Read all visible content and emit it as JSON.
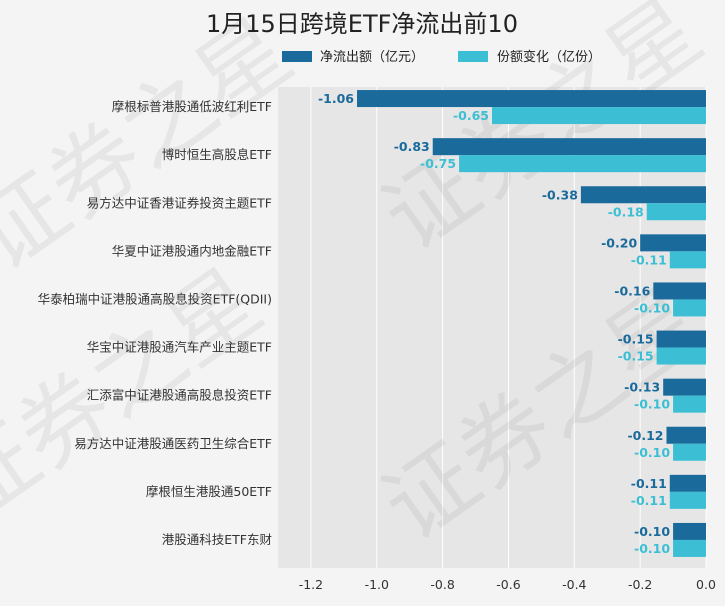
{
  "chart_data": {
    "type": "bar",
    "orientation": "horizontal",
    "title": "1月15日跨境ETF净流出前10",
    "watermark": "证券之星",
    "categories": [
      "摩根标普港股通低波红利ETF",
      "博时恒生高股息ETF",
      "易方达中证香港证券投资主题ETF",
      "华夏中证港股通内地金融ETF",
      "华泰柏瑞中证港股通高股息投资ETF(QDII)",
      "华宝中证港股通汽车产业主题ETF",
      "汇添富中证港股通高股息投资ETF",
      "易方达中证港股通医药卫生综合ETF",
      "摩根恒生港股通50ETF",
      "港股通科技ETF东财"
    ],
    "series": [
      {
        "name": "净流出额（亿元）",
        "color": "#1a6a9c",
        "values": [
          -1.06,
          -0.83,
          -0.38,
          -0.2,
          -0.16,
          -0.15,
          -0.13,
          -0.12,
          -0.11,
          -0.1
        ],
        "labels": [
          "-1.06",
          "-0.83",
          "-0.38",
          "-0.20",
          "-0.16",
          "-0.15",
          "-0.13",
          "-0.12",
          "-0.11",
          "-0.10"
        ]
      },
      {
        "name": "份额变化（亿份）",
        "color": "#3cbfd4",
        "values": [
          -0.65,
          -0.75,
          -0.18,
          -0.11,
          -0.1,
          -0.15,
          -0.1,
          -0.1,
          -0.11,
          -0.1
        ],
        "labels": [
          "-0.65",
          "-0.75",
          "-0.18",
          "-0.11",
          "-0.10",
          "-0.15",
          "-0.10",
          "-0.10",
          "-0.11",
          "-0.10"
        ]
      }
    ],
    "xlim": [
      -1.3,
      0.0
    ],
    "xticks": [
      -1.2,
      -1.0,
      -0.8,
      -0.6,
      -0.4,
      -0.2,
      0.0
    ],
    "xtick_labels": [
      "-1.2",
      "-1.0",
      "-0.8",
      "-0.6",
      "-0.4",
      "-0.2",
      "0.0"
    ],
    "grid": true,
    "legend_position": "top"
  }
}
